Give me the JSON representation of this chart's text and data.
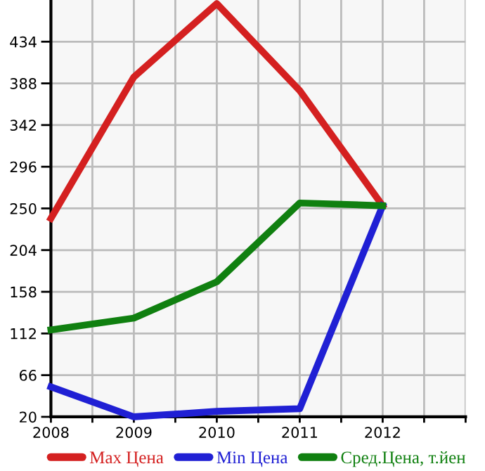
{
  "chart_data": {
    "type": "line",
    "x": [
      2008,
      2009,
      2010,
      2011,
      2012
    ],
    "series": [
      {
        "name": "Max Цена",
        "color": "#d42020",
        "values": [
          239,
          395,
          476,
          380,
          253
        ]
      },
      {
        "name": "Min Цена",
        "color": "#2020d4",
        "values": [
          53,
          20,
          26,
          29,
          253
        ]
      },
      {
        "name": "Сред.Цена, т.йен",
        "color": "#108010",
        "values": [
          116,
          129,
          169,
          256,
          253
        ]
      }
    ],
    "xlim": [
      2008,
      2013
    ],
    "xticks": [
      2008,
      {
        "value": 2008.5,
        "label": null
      },
      2009,
      {
        "value": 2009.5,
        "label": null
      },
      2010,
      {
        "value": 2010.5,
        "label": null
      },
      2011,
      {
        "value": 2011.5,
        "label": null
      },
      2012,
      {
        "value": 2012.5,
        "label": null
      },
      {
        "value": 2013,
        "label": null
      }
    ],
    "ylim": [
      20,
      480
    ],
    "yticks": [
      20,
      66,
      112,
      158,
      204,
      250,
      296,
      342,
      388,
      434
    ],
    "grid": true,
    "legend": "bottom",
    "marker": "none",
    "line_style": "solid"
  }
}
